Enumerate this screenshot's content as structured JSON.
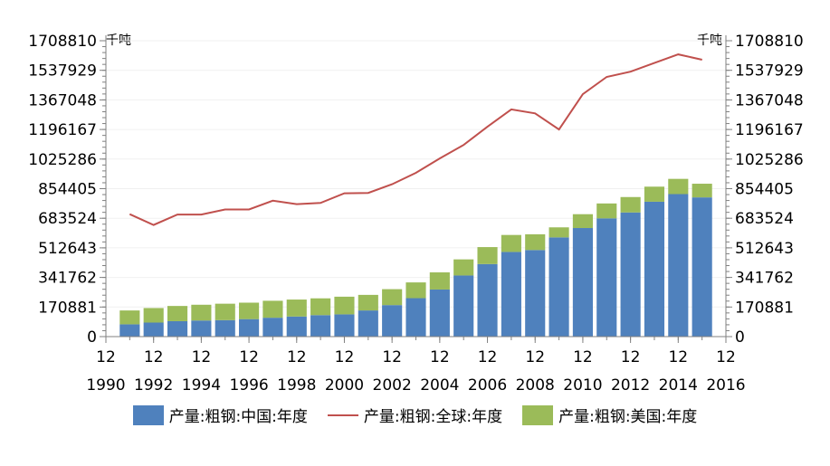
{
  "chart_data": {
    "type": "bar",
    "unit_left": "千吨",
    "unit_right": "千吨",
    "y_ticks": [
      "0",
      "170881",
      "341762",
      "512643",
      "683524",
      "854405",
      "1025286",
      "1196167",
      "1367048",
      "1537929",
      "1708810"
    ],
    "ylim": [
      0,
      1708810
    ],
    "x_tick_months": [
      "12",
      "12",
      "12",
      "12",
      "12",
      "12",
      "12",
      "12",
      "12",
      "12",
      "12",
      "12",
      "12",
      "12"
    ],
    "x_tick_years": [
      "1990",
      "1992",
      "1994",
      "1996",
      "1998",
      "2000",
      "2002",
      "2004",
      "2006",
      "2008",
      "2010",
      "2012",
      "2014",
      "2016"
    ],
    "x_tick_dates": [
      "1990-12",
      "1992-12",
      "1994-12",
      "1996-12",
      "1998-12",
      "2000-12",
      "2002-12",
      "2004-12",
      "2006-12",
      "2008-12",
      "2010-12",
      "2012-12",
      "2014-12",
      "2016-12"
    ],
    "categories": [
      "1991-12",
      "1992-12",
      "1993-12",
      "1994-12",
      "1995-12",
      "1996-12",
      "1997-12",
      "1998-12",
      "1999-12",
      "2000-12",
      "2001-12",
      "2002-12",
      "2003-12",
      "2004-12",
      "2005-12",
      "2006-12",
      "2007-12",
      "2008-12",
      "2009-12",
      "2010-12",
      "2011-12",
      "2012-12",
      "2013-12",
      "2014-12",
      "2015-12"
    ],
    "series": [
      {
        "name": "产量:粗钢:中国:年度",
        "kind": "bar",
        "color": "#4f81bd",
        "values": [
          71000,
          81000,
          89000,
          93000,
          95000,
          101000,
          109000,
          116000,
          124000,
          128500,
          151000,
          182000,
          222000,
          272000,
          353000,
          419000,
          489000,
          500000,
          573000,
          627000,
          683000,
          717000,
          779000,
          823000,
          804000
        ]
      },
      {
        "name": "产量:粗钢:全球:年度",
        "kind": "line",
        "color": "#c0504d",
        "values": [
          707000,
          645000,
          705000,
          705000,
          734000,
          734000,
          785000,
          765000,
          772000,
          828000,
          830000,
          880000,
          946000,
          1029000,
          1107000,
          1212000,
          1312000,
          1289000,
          1196000,
          1400000,
          1500000,
          1530000,
          1580000,
          1630000,
          1599000
        ]
      },
      {
        "name": "产量:粗钢:美国:年度",
        "kind": "bar",
        "color": "#9bbb59",
        "values": [
          80000,
          84000,
          88000,
          91000,
          95000,
          95000,
          98000,
          98000,
          97000,
          102000,
          90000,
          92000,
          91000,
          99000,
          93000,
          98000,
          98000,
          91000,
          58000,
          80000,
          86000,
          89000,
          87000,
          88000,
          79000
        ]
      }
    ],
    "legend_position": "bottom",
    "grid": false
  }
}
